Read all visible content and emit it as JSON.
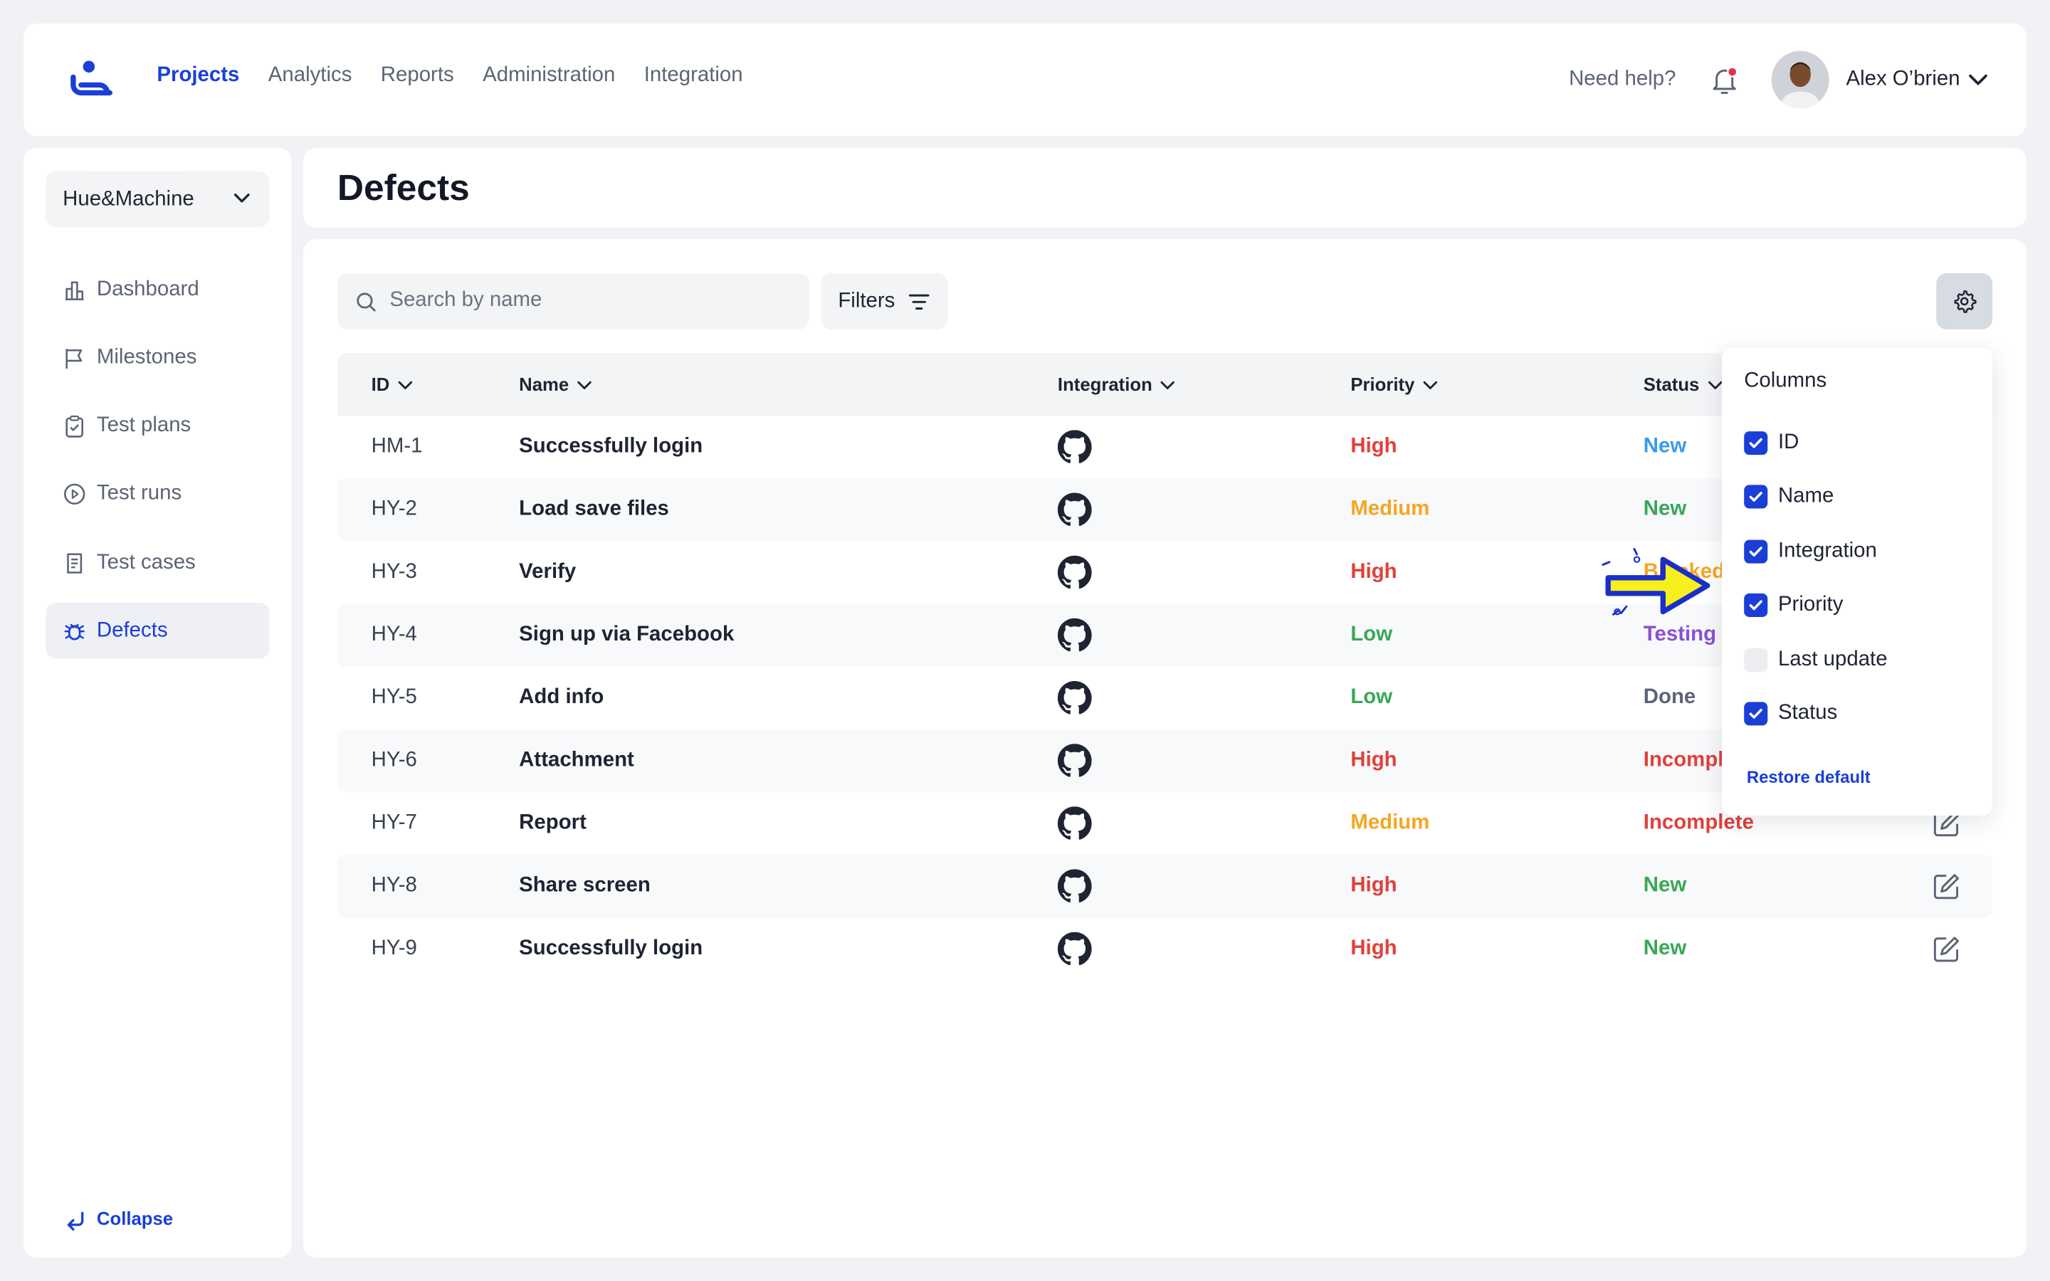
{
  "nav": {
    "items": [
      "Projects",
      "Analytics",
      "Reports",
      "Administration",
      "Integration"
    ],
    "active": "Projects",
    "help": "Need help?",
    "user_name": "Alex O’brien"
  },
  "sidebar": {
    "project": "Hue&Machine",
    "items": [
      {
        "label": "Dashboard",
        "icon": "dashboard-icon"
      },
      {
        "label": "Milestones",
        "icon": "flag-icon"
      },
      {
        "label": "Test plans",
        "icon": "clipboard-icon"
      },
      {
        "label": "Test runs",
        "icon": "play-circle-icon"
      },
      {
        "label": "Test cases",
        "icon": "document-icon"
      },
      {
        "label": "Defects",
        "icon": "bug-icon"
      }
    ],
    "active": "Defects",
    "collapse": "Collapse"
  },
  "page": {
    "title": "Defects"
  },
  "toolbar": {
    "search_placeholder": "Search by name",
    "filters": "Filters"
  },
  "table": {
    "columns": [
      "ID",
      "Name",
      "Integration",
      "Priority",
      "Status"
    ],
    "rows": [
      {
        "id": "HM-1",
        "name": "Successfully login",
        "integration": "github-icon",
        "priority": "High",
        "status": "New",
        "status_color": "#3b9be8"
      },
      {
        "id": "HY-2",
        "name": "Load save files",
        "integration": "github-icon",
        "priority": "Medium",
        "status": "New",
        "status_color": "#3aa757"
      },
      {
        "id": "HY-3",
        "name": "Verify",
        "integration": "github-icon",
        "priority": "High",
        "status": "Blocked",
        "status_color": "#f5a623"
      },
      {
        "id": "HY-4",
        "name": "Sign up via Facebook",
        "integration": "github-icon",
        "priority": "Low",
        "status": "Testing",
        "status_color": "#8a4fd6"
      },
      {
        "id": "HY-5",
        "name": "Add info",
        "integration": "github-icon",
        "priority": "Low",
        "status": "Done",
        "status_color": "#5c6475"
      },
      {
        "id": "HY-6",
        "name": "Attachment",
        "integration": "github-icon",
        "priority": "High",
        "status": "Incomplete",
        "status_color": "#e0413b"
      },
      {
        "id": "HY-7",
        "name": "Report",
        "integration": "github-icon",
        "priority": "Medium",
        "status": "Incomplete",
        "status_color": "#e0413b"
      },
      {
        "id": "HY-8",
        "name": "Share screen",
        "integration": "github-icon",
        "priority": "High",
        "status": "New",
        "status_color": "#3aa757"
      },
      {
        "id": "HY-9",
        "name": "Successfully login",
        "integration": "github-icon",
        "priority": "High",
        "status": "New",
        "status_color": "#3aa757"
      }
    ]
  },
  "priority_colors": {
    "High": "#e0413b",
    "Medium": "#f5a623",
    "Low": "#3aa757"
  },
  "columns_menu": {
    "title": "Columns",
    "options": [
      {
        "label": "ID",
        "checked": true
      },
      {
        "label": "Name",
        "checked": true
      },
      {
        "label": "Integration",
        "checked": true
      },
      {
        "label": "Priority",
        "checked": true
      },
      {
        "label": "Last update",
        "checked": false
      },
      {
        "label": "Status",
        "checked": true
      }
    ],
    "restore": "Restore default"
  },
  "colors": {
    "accent": "#1a3fd6",
    "annotation_arrow": "#f7f01c"
  }
}
